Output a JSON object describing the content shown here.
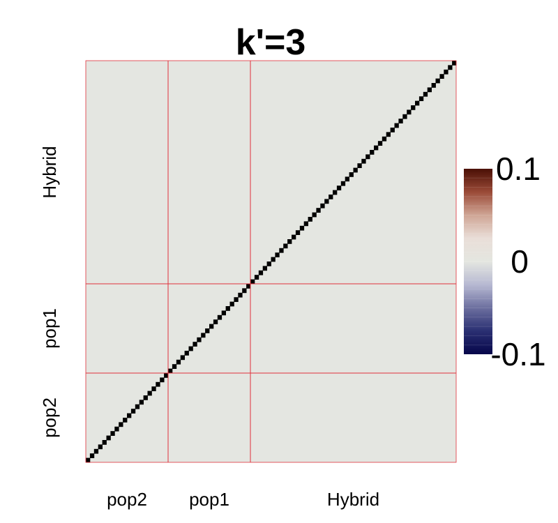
{
  "chart_data": {
    "type": "heatmap",
    "title": "k'=3",
    "groups": [
      {
        "label": "pop2",
        "size": 20
      },
      {
        "label": "pop1",
        "size": 20
      },
      {
        "label": "Hybrid",
        "size": 50
      }
    ],
    "n": 90,
    "off_diagonal_value": 0,
    "diagonal_color": "#000000",
    "separator_color": "#e0303a",
    "colorbar": {
      "min": -0.1,
      "max": 0.1,
      "ticks": [
        "0.1",
        "0",
        "-0.1"
      ],
      "colors": [
        "#06064a",
        "#2a2f72",
        "#6c6f9f",
        "#b7b9d2",
        "#e4e6e0",
        "#e9ded8",
        "#cfa595",
        "#9a4a37",
        "#4a0f05"
      ]
    },
    "cell_color": "#e4e6e1"
  }
}
